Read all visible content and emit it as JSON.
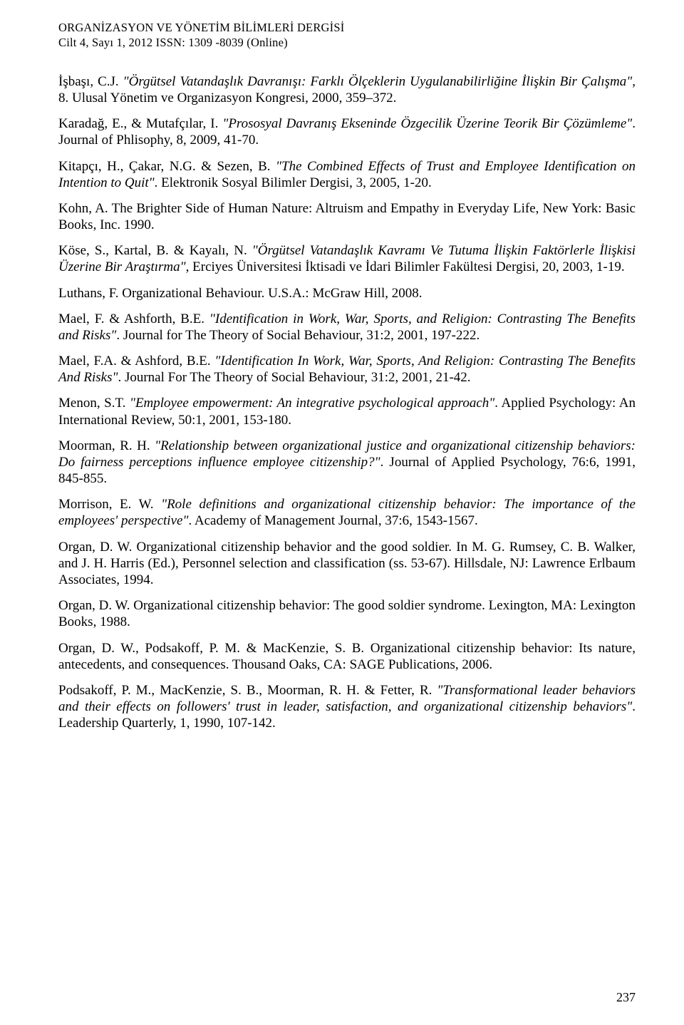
{
  "header": {
    "line1": "ORGANİZASYON VE YÖNETİM BİLİMLERİ DERGİSİ",
    "line2": "Cilt 4, Sayı 1, 2012  ISSN: 1309 -8039  (Online)"
  },
  "refs": [
    {
      "parts": [
        {
          "t": "İşbaşı, C.J. "
        },
        {
          "t": "\"Örgütsel Vatandaşlık Davranışı: Farklı Ölçeklerin Uygulanabilirliğine İlişkin Bir Çalışma\"",
          "i": true
        },
        {
          "t": ", 8. Ulusal Yönetim ve Organizasyon Kongresi, 2000, 359–372."
        }
      ]
    },
    {
      "parts": [
        {
          "t": "Karadağ, E., & Mutafçılar, I. "
        },
        {
          "t": "\"Prososyal Davranış Ekseninde Özgecilik Üzerine Teorik Bir Çözümleme\"",
          "i": true
        },
        {
          "t": ". Journal of Phlisophy, 8, 2009, 41-70."
        }
      ]
    },
    {
      "parts": [
        {
          "t": "Kitapçı, H., Çakar, N.G. & Sezen, B. "
        },
        {
          "t": "\"The Combined Effects of Trust and Employee Identification on Intention to Quit\"",
          "i": true
        },
        {
          "t": ". Elektronik Sosyal Bilimler Dergisi, 3, 2005, 1-20."
        }
      ]
    },
    {
      "parts": [
        {
          "t": "Kohn, A. The Brighter Side of Human Nature: Altruism and Empathy in Everyday Life, New York: Basic Books, Inc. 1990."
        }
      ]
    },
    {
      "parts": [
        {
          "t": "Köse, S., Kartal, B. & Kayalı, N. "
        },
        {
          "t": "\"Örgütsel Vatandaşlık Kavramı Ve Tutuma İlişkin Faktörlerle İlişkisi Üzerine Bir Araştırma\"",
          "i": true
        },
        {
          "t": ", Erciyes Üniversitesi İktisadi ve İdari Bilimler Fakültesi Dergisi, 20, 2003, 1-19."
        }
      ]
    },
    {
      "parts": [
        {
          "t": "Luthans, F. Organizational Behaviour. U.S.A.: McGraw Hill, 2008."
        }
      ]
    },
    {
      "parts": [
        {
          "t": "Mael, F. & Ashforth, B.E. "
        },
        {
          "t": "\"Identification in Work, War, Sports, and Religion: Contrasting The Benefits and Risks\"",
          "i": true
        },
        {
          "t": ". Journal for The Theory of Social Behaviour, 31:2, 2001, 197-222."
        }
      ]
    },
    {
      "parts": [
        {
          "t": "Mael, F.A. & Ashford, B.E. "
        },
        {
          "t": "\"Identification In Work, War, Sports, And Religion: Contrasting The Benefits And Risks\"",
          "i": true
        },
        {
          "t": ". Journal For The Theory of Social Behaviour, 31:2, 2001, 21-42."
        }
      ]
    },
    {
      "parts": [
        {
          "t": "Menon, S.T. "
        },
        {
          "t": "\"Employee empowerment: An integrative psychological approach\"",
          "i": true
        },
        {
          "t": ". Applied Psychology: An International Review, 50:1, 2001, 153-180."
        }
      ]
    },
    {
      "parts": [
        {
          "t": "Moorman, R. H. "
        },
        {
          "t": "\"Relationship between organizational justice and organizational citizenship behaviors: Do fairness perceptions influence employee citizenship?\"",
          "i": true
        },
        {
          "t": ". Journal of Applied Psychology, 76:6, 1991, 845-855."
        }
      ]
    },
    {
      "parts": [
        {
          "t": "Morrison, E. W. "
        },
        {
          "t": "\"Role definitions and organizational citizenship behavior: The importance of the employees' perspective\"",
          "i": true
        },
        {
          "t": ". Academy of Management Journal, 37:6, 1543-1567."
        }
      ]
    },
    {
      "parts": [
        {
          "t": "Organ, D. W. Organizational citizenship behavior and the good soldier. In M. G. Rumsey, C. B. Walker, and J. H. Harris (Ed.), Personnel selection and classification (ss. 53-67). Hillsdale, NJ: Lawrence Erlbaum Associates, 1994."
        }
      ]
    },
    {
      "parts": [
        {
          "t": "Organ, D. W. Organizational citizenship behavior: The good soldier syndrome. Lexington, MA: Lexington Books, 1988."
        }
      ]
    },
    {
      "parts": [
        {
          "t": "Organ, D. W., Podsakoff, P. M. & MacKenzie, S. B. Organizational citizenship behavior: Its nature, antecedents, and consequences. Thousand Oaks, CA: SAGE Publications, 2006."
        }
      ]
    },
    {
      "parts": [
        {
          "t": "Podsakoff, P. M., MacKenzie, S. B., Moorman, R. H. & Fetter, R. "
        },
        {
          "t": "\"Transformational leader behaviors and their effects on followers' trust in leader, satisfaction, and organizational citizenship behaviors\"",
          "i": true
        },
        {
          "t": ". Leadership Quarterly, 1, 1990, 107-142."
        }
      ]
    }
  ],
  "page_number": "237"
}
